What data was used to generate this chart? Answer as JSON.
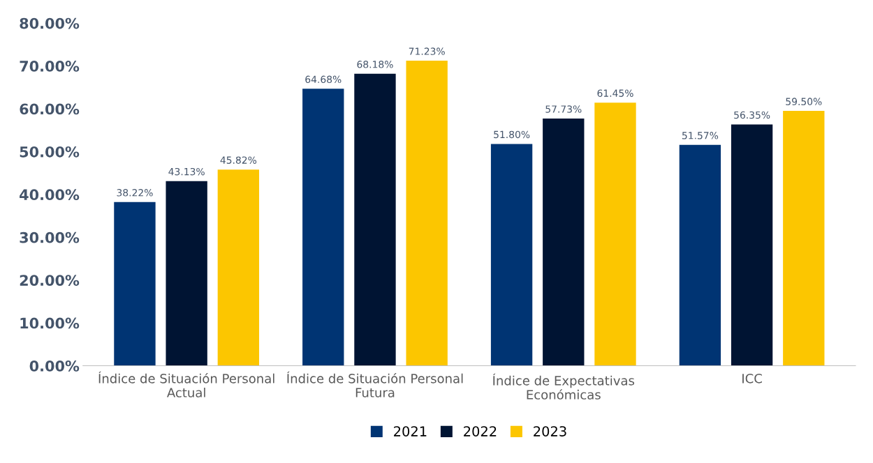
{
  "chart_data": {
    "type": "bar",
    "categories": [
      "Índice de Situación Personal\nActual",
      "Índice de Situación Personal\nFutura",
      "Índice de Expectativas\nEconómicas",
      "ICC"
    ],
    "series": [
      {
        "name": "2021",
        "color": "#003473",
        "values": [
          38.22,
          64.68,
          51.8,
          51.57
        ],
        "value_labels": [
          "38.22%",
          "64.68%",
          "51.80%",
          "51.57%"
        ]
      },
      {
        "name": "2022",
        "color": "#001433",
        "values": [
          43.13,
          68.18,
          57.73,
          56.35
        ],
        "value_labels": [
          "43.13%",
          "68.18%",
          "57.73%",
          "56.35%"
        ]
      },
      {
        "name": "2023",
        "color": "#fcc600",
        "values": [
          45.82,
          71.23,
          61.45,
          59.5
        ],
        "value_labels": [
          "45.82%",
          "71.23%",
          "61.45%",
          "59.50%"
        ]
      }
    ],
    "ylim": [
      0,
      80
    ],
    "yticks": [
      {
        "value": 0,
        "label": "0.00%"
      },
      {
        "value": 10,
        "label": "10.00%"
      },
      {
        "value": 20,
        "label": "20.00%"
      },
      {
        "value": 30,
        "label": "30.00%"
      },
      {
        "value": 40,
        "label": "40.00%"
      },
      {
        "value": 50,
        "label": "50.00%"
      },
      {
        "value": 60,
        "label": "60.00%"
      },
      {
        "value": 70,
        "label": "70.00%"
      },
      {
        "value": 80,
        "label": "80.00%"
      }
    ],
    "grid": false,
    "legend": "bottom"
  }
}
